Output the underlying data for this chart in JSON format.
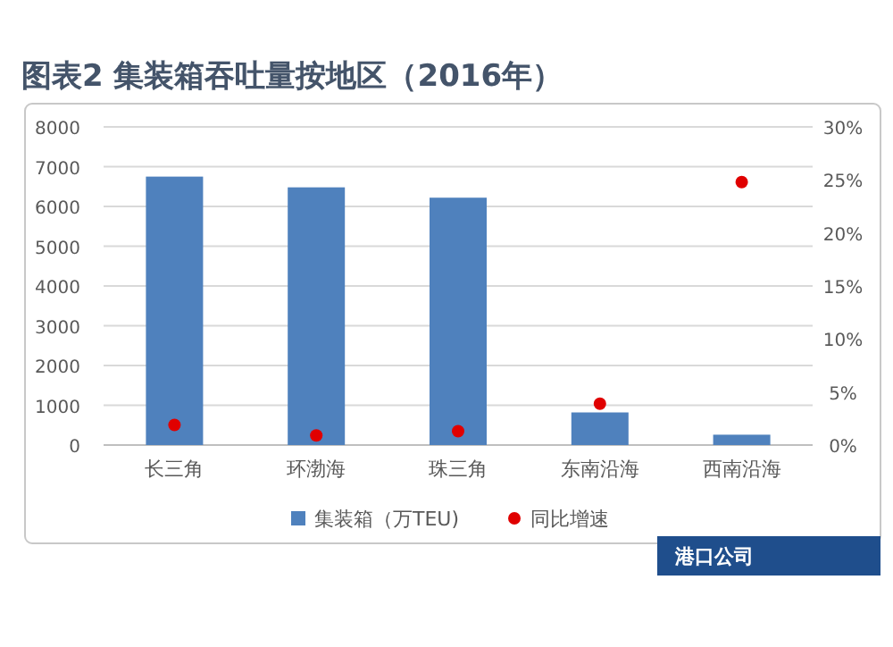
{
  "chart_data": {
    "type": "bar",
    "title": "图表2 集装箱吞吐量按地区（2016年）",
    "categories": [
      "长三角",
      "环渤海",
      "珠三角",
      "东南沿海",
      "西南沿海"
    ],
    "series": [
      {
        "name": "集装箱（万TEU)",
        "color": "#4f81bd",
        "values": [
          6750,
          6480,
          6220,
          820,
          260
        ]
      },
      {
        "name": "同比增速",
        "type": "scatter",
        "axis": "y2",
        "color": "#e00000",
        "marker": "circle",
        "values": [
          1.9,
          0.9,
          1.3,
          3.9,
          24.8
        ]
      }
    ],
    "ylim": [
      0,
      8000
    ],
    "yticks": [
      0,
      1000,
      2000,
      3000,
      4000,
      5000,
      6000,
      7000,
      8000
    ],
    "y2lim": [
      0,
      30
    ],
    "y2ticks": [
      {
        "value": 0,
        "label": "0%"
      },
      {
        "value": 5,
        "label": "5%"
      },
      {
        "value": 10,
        "label": "10%"
      },
      {
        "value": 15,
        "label": "15%"
      },
      {
        "value": 20,
        "label": "20%"
      },
      {
        "value": 25,
        "label": "25%"
      },
      {
        "value": 30,
        "label": "30%"
      }
    ],
    "grid": "y",
    "legend": "bottom",
    "annotations": [
      "港口公司"
    ]
  }
}
